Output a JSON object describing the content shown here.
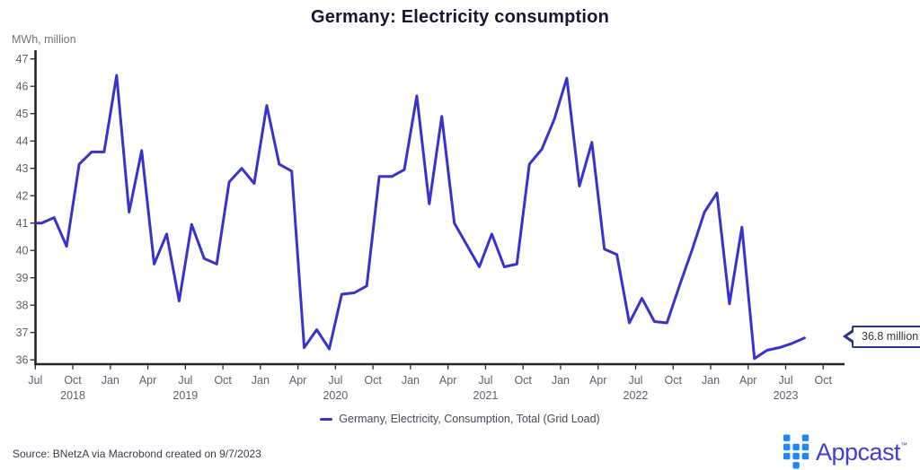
{
  "title": "Germany: Electricity consumption",
  "y_axis_label": "MWh, million",
  "legend": {
    "label": "Germany, Electricity, Consumption, Total (Grid Load)"
  },
  "source_note": "Source: BNetzA via Macrobond created on 9/7/2023",
  "callout": {
    "text": "36.8 million"
  },
  "branding": {
    "name": "Appcast",
    "trademark": "™"
  },
  "colors": {
    "line": "#3932cd",
    "title_text": "#181632",
    "axis": "#262626",
    "tick_text": "#5f5f6b",
    "unit_text": "#74747e",
    "legend_text": "#4a4a58",
    "source_text": "#3a3a4a",
    "callout_border": "#2c3192",
    "callout_text": "#353535",
    "brand_text": "#403fd2",
    "brand_mark": "#1e87ff"
  },
  "chart_data": {
    "type": "line",
    "title": "Germany: Electricity consumption",
    "xlabel": "",
    "ylabel": "MWh, million",
    "ylim": [
      36,
      47
    ],
    "grid": false,
    "legend_position": "bottom",
    "y_ticks": [
      36,
      37,
      38,
      39,
      40,
      41,
      42,
      43,
      44,
      45,
      46,
      47
    ],
    "x_ticks": [
      {
        "month": "Jul",
        "year": ""
      },
      {
        "month": "Oct",
        "year": "2018"
      },
      {
        "month": "Jan",
        "year": ""
      },
      {
        "month": "Apr",
        "year": ""
      },
      {
        "month": "Jul",
        "year": "2019"
      },
      {
        "month": "Oct",
        "year": ""
      },
      {
        "month": "Jan",
        "year": ""
      },
      {
        "month": "Apr",
        "year": ""
      },
      {
        "month": "Jul",
        "year": "2020"
      },
      {
        "month": "Oct",
        "year": ""
      },
      {
        "month": "Jan",
        "year": ""
      },
      {
        "month": "Apr",
        "year": ""
      },
      {
        "month": "Jul",
        "year": "2021"
      },
      {
        "month": "Oct",
        "year": ""
      },
      {
        "month": "Jan",
        "year": ""
      },
      {
        "month": "Apr",
        "year": ""
      },
      {
        "month": "Jul",
        "year": "2022"
      },
      {
        "month": "Oct",
        "year": ""
      },
      {
        "month": "Jan",
        "year": ""
      },
      {
        "month": "Apr",
        "year": ""
      },
      {
        "month": "Jul",
        "year": "2023"
      },
      {
        "month": "Oct",
        "year": ""
      }
    ],
    "series": [
      {
        "name": "Germany, Electricity, Consumption, Total (Grid Load)",
        "color": "#3932cd",
        "x": [
          "2018-07",
          "2018-08",
          "2018-09",
          "2018-10",
          "2018-11",
          "2018-12",
          "2019-01",
          "2019-02",
          "2019-03",
          "2019-04",
          "2019-05",
          "2019-06",
          "2019-07",
          "2019-08",
          "2019-09",
          "2019-10",
          "2019-11",
          "2019-12",
          "2020-01",
          "2020-02",
          "2020-03",
          "2020-04",
          "2020-05",
          "2020-06",
          "2020-07",
          "2020-08",
          "2020-09",
          "2020-10",
          "2020-11",
          "2020-12",
          "2021-01",
          "2021-02",
          "2021-03",
          "2021-04",
          "2021-05",
          "2021-06",
          "2021-07",
          "2021-08",
          "2021-09",
          "2021-10",
          "2021-11",
          "2021-12",
          "2022-01",
          "2022-02",
          "2022-03",
          "2022-04",
          "2022-05",
          "2022-06",
          "2022-07",
          "2022-08",
          "2022-09",
          "2022-10",
          "2022-11",
          "2022-12",
          "2023-01",
          "2023-02",
          "2023-03",
          "2023-04",
          "2023-05",
          "2023-06",
          "2023-07",
          "2023-08"
        ],
        "values": [
          41.0,
          41.2,
          40.15,
          43.15,
          43.6,
          43.6,
          46.4,
          41.4,
          43.65,
          39.5,
          40.6,
          38.15,
          40.95,
          39.7,
          39.5,
          42.5,
          43.0,
          42.45,
          45.3,
          43.15,
          42.9,
          36.45,
          37.1,
          36.4,
          38.4,
          38.45,
          38.7,
          42.7,
          42.7,
          42.95,
          45.65,
          41.7,
          44.9,
          41.0,
          40.2,
          39.4,
          40.6,
          39.4,
          39.5,
          43.15,
          43.7,
          44.8,
          46.3,
          42.35,
          43.95,
          40.05,
          39.85,
          37.35,
          38.25,
          37.4,
          37.35,
          38.7,
          40.0,
          41.4,
          42.1,
          38.05,
          40.85,
          36.05,
          36.35,
          36.45,
          36.6,
          36.8
        ]
      }
    ],
    "last_value_label": "36.8 million"
  }
}
